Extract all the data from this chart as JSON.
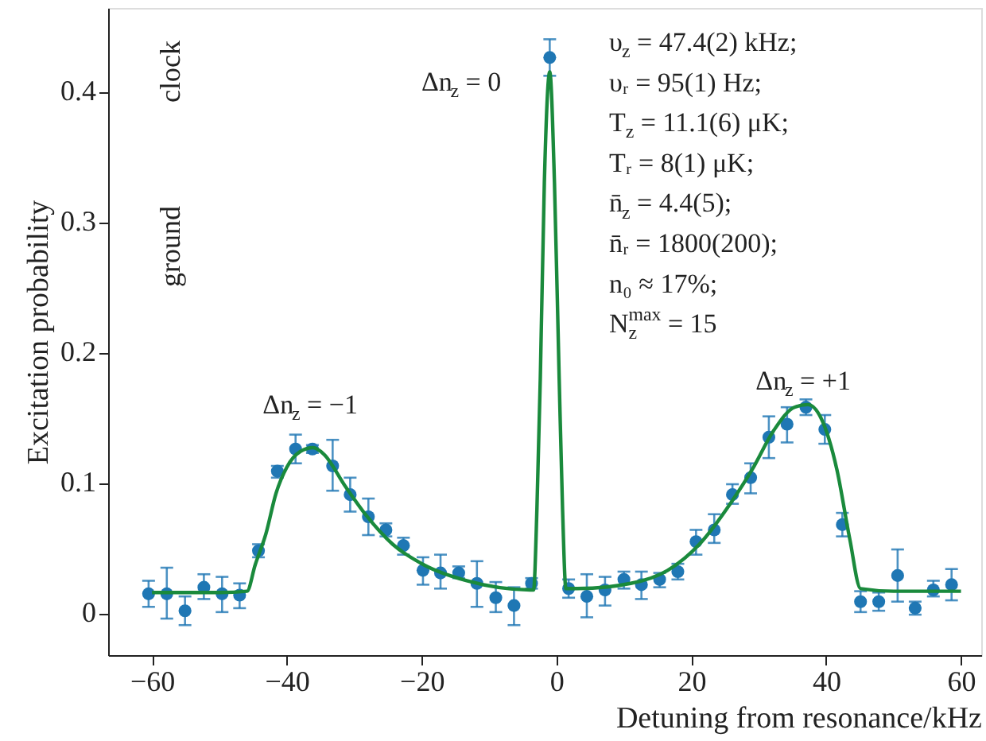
{
  "chart_data": {
    "type": "scatter",
    "xlabel": "Detuning from resonance/kHz",
    "ylabel": "Excitation probability",
    "xlim": [
      -66.5,
      63
    ],
    "xticks": [
      -60,
      -40,
      -20,
      0,
      20,
      40,
      60
    ],
    "ylim": [
      -0.032,
      0.464
    ],
    "yticks": [
      0,
      0.1,
      0.2,
      0.3,
      0.4
    ],
    "grid": false,
    "series": [
      {
        "type": "scatter",
        "marker": "circle",
        "color": "#1f77b4",
        "x": [
          -60.5,
          -57.8,
          -55.1,
          -52.3,
          -49.6,
          -47.0,
          -44.2,
          -41.4,
          -38.7,
          -36.2,
          -33.2,
          -30.6,
          -27.9,
          -25.3,
          -22.7,
          -19.8,
          -17.2,
          -14.5,
          -11.8,
          -9.0,
          -6.3,
          -3.7,
          -1.0,
          1.8,
          4.5,
          7.2,
          10.0,
          12.6,
          15.3,
          18.0,
          20.7,
          23.4,
          26.1,
          28.8,
          31.5,
          34.2,
          37.0,
          39.8,
          42.4,
          45.1,
          47.8,
          50.6,
          53.2,
          55.9,
          58.6
        ],
        "values": [
          0.015,
          0.015,
          0.002,
          0.02,
          0.015,
          0.014,
          0.048,
          0.109,
          0.126,
          0.126,
          0.113,
          0.091,
          0.074,
          0.064,
          0.052,
          0.033,
          0.031,
          0.031,
          0.023,
          0.012,
          0.006,
          0.023,
          0.426,
          0.019,
          0.013,
          0.018,
          0.026,
          0.022,
          0.026,
          0.032,
          0.055,
          0.064,
          0.091,
          0.104,
          0.135,
          0.145,
          0.158,
          0.141,
          0.068,
          0.009,
          0.009,
          0.029,
          0.004,
          0.018,
          0.022
        ],
        "errors": [
          [
            0.005,
            0.025
          ],
          [
            -0.004,
            0.035
          ],
          [
            -0.009,
            0.013
          ],
          [
            0.011,
            0.03
          ],
          [
            0.001,
            0.028
          ],
          [
            0.004,
            0.023
          ],
          [
            0.043,
            0.053
          ],
          [
            0.104,
            0.113
          ],
          [
            0.115,
            0.137
          ],
          [
            0.123,
            0.129
          ],
          [
            0.094,
            0.133
          ],
          [
            0.078,
            0.104
          ],
          [
            0.06,
            0.088
          ],
          [
            0.059,
            0.069
          ],
          [
            0.045,
            0.058
          ],
          [
            0.022,
            0.043
          ],
          [
            0.019,
            0.045
          ],
          [
            0.027,
            0.036
          ],
          [
            0.005,
            0.04
          ],
          [
            0.001,
            0.024
          ],
          [
            -0.009,
            0.02
          ],
          [
            0.019,
            0.027
          ],
          [
            0.412,
            0.44
          ],
          [
            0.012,
            0.026
          ],
          [
            -0.003,
            0.03
          ],
          [
            0.006,
            0.028
          ],
          [
            0.019,
            0.032
          ],
          [
            0.011,
            0.032
          ],
          [
            0.02,
            0.031
          ],
          [
            0.026,
            0.038
          ],
          [
            0.045,
            0.064
          ],
          [
            0.054,
            0.076
          ],
          [
            0.084,
            0.099
          ],
          [
            0.092,
            0.115
          ],
          [
            0.119,
            0.151
          ],
          [
            0.131,
            0.158
          ],
          [
            0.152,
            0.164
          ],
          [
            0.13,
            0.152
          ],
          [
            0.059,
            0.077
          ],
          [
            0.001,
            0.017
          ],
          [
            0.002,
            0.016
          ],
          [
            0.009,
            0.049
          ],
          [
            -0.001,
            0.009
          ],
          [
            0.013,
            0.025
          ],
          [
            0.01,
            0.034
          ]
        ]
      },
      {
        "type": "line",
        "color": "#1a8a3c",
        "x": [
          -60,
          -50,
          -45.9,
          -44.7,
          -43.1,
          -41.6,
          -40,
          -38,
          -36.1,
          -34.5,
          -31.4,
          -28.2,
          -24.3,
          -19.6,
          -13.3,
          -3.9,
          -3.4,
          -2.9,
          -2.4,
          -1.8,
          -1.0,
          -0.3,
          0.4,
          0.9,
          1.4,
          3.1,
          11,
          16.5,
          21.2,
          25.9,
          29,
          32.2,
          35.3,
          37.3,
          39.2,
          41.6,
          43.5,
          45.1,
          50,
          60
        ],
        "values": [
          0.016,
          0.016,
          0.017,
          0.037,
          0.061,
          0.092,
          0.112,
          0.124,
          0.127,
          0.122,
          0.098,
          0.075,
          0.053,
          0.037,
          0.025,
          0.018,
          0.018,
          0.08,
          0.18,
          0.33,
          0.415,
          0.33,
          0.18,
          0.08,
          0.019,
          0.019,
          0.023,
          0.033,
          0.053,
          0.085,
          0.11,
          0.14,
          0.158,
          0.16,
          0.15,
          0.11,
          0.057,
          0.019,
          0.017,
          0.017
        ]
      }
    ],
    "annotations": [
      "clock",
      "ground",
      "υ$_{z}$ = 47.4(2) kHz;",
      "υᵣ = 95(1) Hz;",
      "T$_{z}$ = 11.1(6) μK;",
      "Tᵣ = 8(1) μK;",
      "n̄$_{z}$ = 4.4(5);",
      "n̄ᵣ = 1800(200);",
      "n₀ ≈ 17%;",
      "N$_{z}$$^{max}$ = 15",
      "Δn$_{z}$ = −1",
      "Δn$_{z}$ = 0",
      "Δn$_{z}$ = +1"
    ]
  }
}
